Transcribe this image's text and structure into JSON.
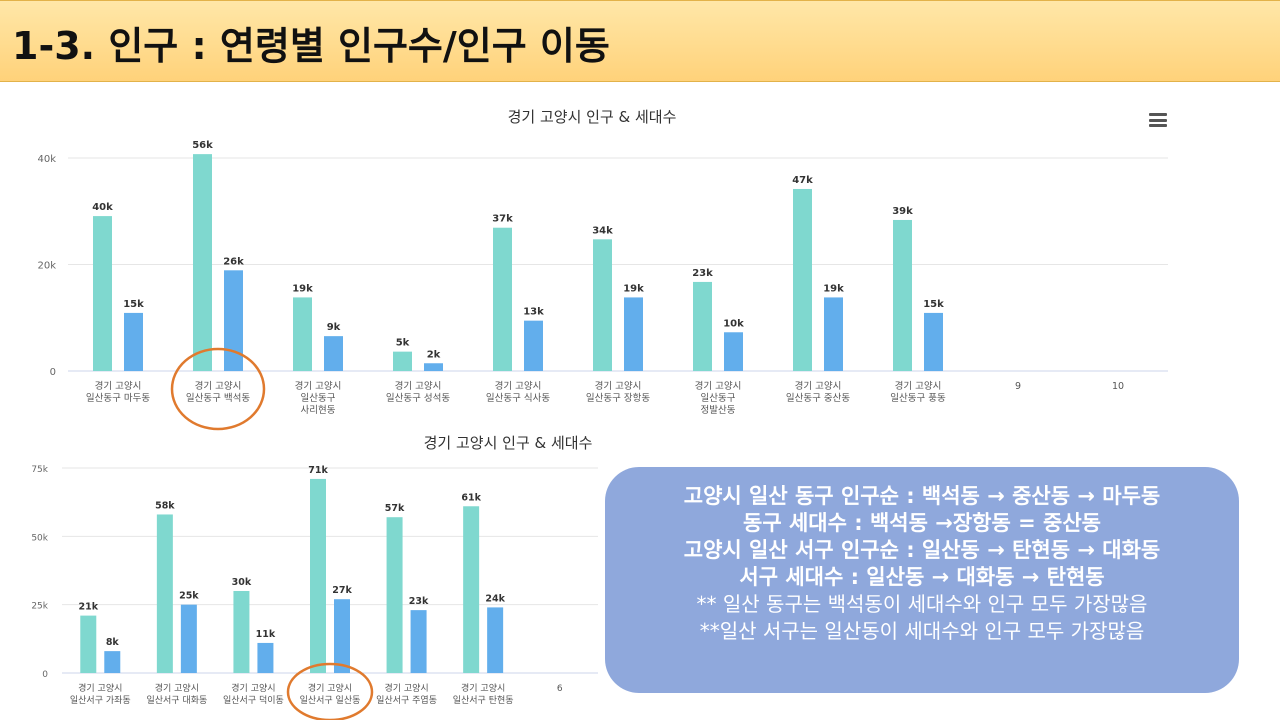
{
  "header": {
    "title": "1-3. 인구 : 연령별 인구수/인구 이동"
  },
  "colors": {
    "population": "#7fd8cf",
    "households": "#62aeec",
    "highlight": "#e07a2e",
    "summary_bg": "#8fa8dc"
  },
  "menu": {
    "icon": "hamburger-menu-icon"
  },
  "chart_data": [
    {
      "type": "bar",
      "title": "경기 고양시 인구 & 세대수",
      "categories": [
        [
          "경기 고양시",
          "일산동구 마두동"
        ],
        [
          "경기 고양시",
          "일산동구 백석동"
        ],
        [
          "경기 고양시",
          "일산동구",
          "사리현동"
        ],
        [
          "경기 고양시",
          "일산동구 성석동"
        ],
        [
          "경기 고양시",
          "일산동구 식사동"
        ],
        [
          "경기 고양시",
          "일산동구 장항동"
        ],
        [
          "경기 고양시",
          "일산동구",
          "정발산동"
        ],
        [
          "경기 고양시",
          "일산동구 중산동"
        ],
        [
          "경기 고양시",
          "일산동구 풍동"
        ],
        [
          "9"
        ],
        [
          "10"
        ]
      ],
      "series": [
        {
          "values": [
            40,
            56,
            19,
            5,
            37,
            34,
            23,
            47,
            39,
            null,
            null
          ],
          "labels": [
            "40k",
            "56k",
            "19k",
            "5k",
            "37k",
            "34k",
            "23k",
            "47k",
            "39k",
            "",
            ""
          ]
        },
        {
          "values": [
            15,
            26,
            9,
            2,
            13,
            19,
            10,
            19,
            15,
            null,
            null
          ],
          "labels": [
            "15k",
            "26k",
            "9k",
            "2k",
            "13k",
            "19k",
            "10k",
            "19k",
            "15k",
            "",
            ""
          ]
        }
      ],
      "yticks": [
        "0",
        "20k",
        "40k"
      ],
      "ylim": [
        0,
        55
      ],
      "highlighted_category": 1
    },
    {
      "type": "bar",
      "title": "경기 고양시 인구 & 세대수",
      "categories": [
        [
          "경기 고양시",
          "일산서구 가좌동"
        ],
        [
          "경기 고양시",
          "일산서구 대화동"
        ],
        [
          "경기 고양시",
          "일산서구 덕이동"
        ],
        [
          "경기 고양시",
          "일산서구 일산동"
        ],
        [
          "경기 고양시",
          "일산서구 주엽동"
        ],
        [
          "경기 고양시",
          "일산서구 탄현동"
        ],
        [
          "6"
        ]
      ],
      "series": [
        {
          "values": [
            21,
            58,
            30,
            71,
            57,
            61,
            null
          ],
          "labels": [
            "21k",
            "58k",
            "30k",
            "71k",
            "57k",
            "61k",
            ""
          ]
        },
        {
          "values": [
            8,
            25,
            11,
            27,
            23,
            24,
            null
          ],
          "labels": [
            "8k",
            "25k",
            "11k",
            "27k",
            "23k",
            "24k",
            ""
          ]
        }
      ],
      "yticks": [
        "0",
        "25k",
        "50k",
        "75k"
      ],
      "ylim": [
        0,
        75
      ],
      "highlighted_category": 3
    }
  ],
  "summary": {
    "lines": [
      "고양시 일산 동구 인구순 : 백석동 → 중산동 → 마두동",
      "동구 세대수 : 백석동 →장항동 = 중산동",
      "고양시 일산 서구 인구순 : 일산동 → 탄현동 → 대화동",
      "서구 세대수 : 일산동 → 대화동 → 탄현동",
      "** 일산 동구는 백석동이 세대수와 인구 모두 가장많음",
      "**일산 서구는 일산동이 세대수와 인구 모두 가장많음"
    ]
  }
}
